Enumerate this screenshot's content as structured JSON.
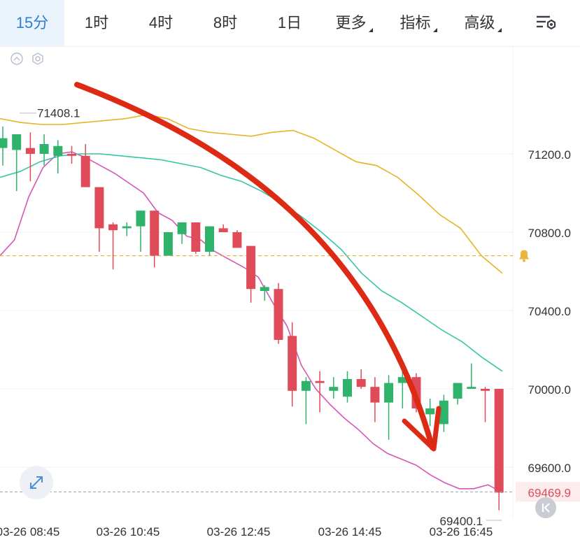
{
  "tabs": [
    {
      "label": "15分",
      "active": true,
      "dropdown": false
    },
    {
      "label": "1时",
      "active": false,
      "dropdown": false
    },
    {
      "label": "4时",
      "active": false,
      "dropdown": false
    },
    {
      "label": "8时",
      "active": false,
      "dropdown": false
    },
    {
      "label": "1日",
      "active": false,
      "dropdown": false
    },
    {
      "label": "更多",
      "active": false,
      "dropdown": true
    },
    {
      "label": "指标",
      "active": false,
      "dropdown": true
    },
    {
      "label": "高级",
      "active": false,
      "dropdown": true
    }
  ],
  "icons": {
    "settings": "chart-settings-icon",
    "collapse": "collapse-up-icon",
    "indicator": "hexagon-settings-icon",
    "expand": "expand-icon",
    "alert": "bell-icon",
    "jump_latest": "jump-to-latest-icon"
  },
  "colors": {
    "up": "#2fb36b",
    "down": "#e04b5a",
    "ma_fast": "#d657b5",
    "ma_mid": "#39c4a6",
    "ma_slow": "#e6b324",
    "alert_line": "#e9b53a",
    "arrow": "#dc2a14",
    "accent": "#2f7fd0"
  },
  "chart_data": {
    "type": "candlestick",
    "y_axis": {
      "ticks": [
        71200.0,
        70800.0,
        70400.0,
        70000.0,
        69600.0
      ],
      "min": 69300,
      "max": 71660,
      "position": "right"
    },
    "x_axis": {
      "ticks": [
        "03-26 08:45",
        "03-26 10:45",
        "03-26 12:45",
        "03-26 14:45",
        "03-26 16:45"
      ]
    },
    "high_label": "71408.1",
    "low_label": "69400.1",
    "last_price": "69469.9",
    "alert_price": 70680,
    "candles": [
      {
        "o": 71230,
        "h": 71340,
        "l": 71140,
        "c": 71280
      },
      {
        "o": 71220,
        "h": 71300,
        "l": 71010,
        "c": 71300
      },
      {
        "o": 71230,
        "h": 71310,
        "l": 71060,
        "c": 71200
      },
      {
        "o": 71200,
        "h": 71300,
        "l": 71140,
        "c": 71250
      },
      {
        "o": 71190,
        "h": 71270,
        "l": 71100,
        "c": 71240
      },
      {
        "o": 71200,
        "h": 71240,
        "l": 71150,
        "c": 71190
      },
      {
        "o": 71190,
        "h": 71250,
        "l": 71040,
        "c": 71030
      },
      {
        "o": 71030,
        "h": 71030,
        "l": 70700,
        "c": 70820
      },
      {
        "o": 70840,
        "h": 70850,
        "l": 70610,
        "c": 70810
      },
      {
        "o": 70820,
        "h": 70850,
        "l": 70780,
        "c": 70830
      },
      {
        "o": 70830,
        "h": 70910,
        "l": 70700,
        "c": 70910
      },
      {
        "o": 70910,
        "h": 70910,
        "l": 70620,
        "c": 70680
      },
      {
        "o": 70680,
        "h": 70800,
        "l": 70680,
        "c": 70800
      },
      {
        "o": 70790,
        "h": 70850,
        "l": 70740,
        "c": 70850
      },
      {
        "o": 70850,
        "h": 70850,
        "l": 70690,
        "c": 70700
      },
      {
        "o": 70700,
        "h": 70830,
        "l": 70680,
        "c": 70830
      },
      {
        "o": 70820,
        "h": 70840,
        "l": 70800,
        "c": 70800
      },
      {
        "o": 70800,
        "h": 70810,
        "l": 70720,
        "c": 70720
      },
      {
        "o": 70730,
        "h": 70730,
        "l": 70440,
        "c": 70510
      },
      {
        "o": 70500,
        "h": 70530,
        "l": 70450,
        "c": 70520
      },
      {
        "o": 70510,
        "h": 70540,
        "l": 70230,
        "c": 70250
      },
      {
        "o": 70270,
        "h": 70340,
        "l": 69910,
        "c": 69990
      },
      {
        "o": 69990,
        "h": 70060,
        "l": 69820,
        "c": 70040
      },
      {
        "o": 70040,
        "h": 70090,
        "l": 69880,
        "c": 70030
      },
      {
        "o": 69990,
        "h": 70060,
        "l": 69950,
        "c": 70010
      },
      {
        "o": 69960,
        "h": 70090,
        "l": 69930,
        "c": 70050
      },
      {
        "o": 70050,
        "h": 70100,
        "l": 70000,
        "c": 70010
      },
      {
        "o": 70010,
        "h": 70060,
        "l": 69830,
        "c": 69930
      },
      {
        "o": 69930,
        "h": 70070,
        "l": 69740,
        "c": 70030
      },
      {
        "o": 70030,
        "h": 70100,
        "l": 69900,
        "c": 70060
      },
      {
        "o": 70060,
        "h": 70080,
        "l": 69880,
        "c": 69900
      },
      {
        "o": 69870,
        "h": 69950,
        "l": 69810,
        "c": 69900
      },
      {
        "o": 69820,
        "h": 69970,
        "l": 69780,
        "c": 69940
      },
      {
        "o": 69950,
        "h": 70030,
        "l": 69920,
        "c": 70030
      },
      {
        "o": 70000,
        "h": 70130,
        "l": 70000,
        "c": 70010
      },
      {
        "o": 70000,
        "h": 70010,
        "l": 69830,
        "c": 69990
      },
      {
        "o": 70000,
        "h": 70000,
        "l": 69380,
        "c": 69470
      }
    ],
    "ma_fast": [
      70680,
      70760,
      70980,
      71130,
      71200,
      71210,
      71180,
      71140,
      71100,
      71050,
      71000,
      70900,
      70860,
      70780,
      70760,
      70700,
      70660,
      70620,
      70570,
      70440,
      70320,
      70120,
      70000,
      69920,
      69850,
      69790,
      69720,
      69670,
      69640,
      69610,
      69560,
      69520,
      69490,
      69490,
      69510,
      69470
    ],
    "ma_mid": [
      71080,
      71110,
      71160,
      71190,
      71200,
      71200,
      71190,
      71180,
      71170,
      71150,
      71130,
      71090,
      71060,
      71010,
      70950,
      70880,
      70800,
      70710,
      70590,
      70500,
      70440,
      70370,
      70300,
      70240,
      70160,
      70090
    ],
    "ma_slow": [
      71380,
      71360,
      71350,
      71350,
      71360,
      71370,
      71380,
      71400,
      71380,
      71330,
      71310,
      71300,
      71290,
      71310,
      71320,
      71280,
      71220,
      71160,
      71140,
      71080,
      70990,
      70890,
      70820,
      70680,
      70590
    ]
  }
}
